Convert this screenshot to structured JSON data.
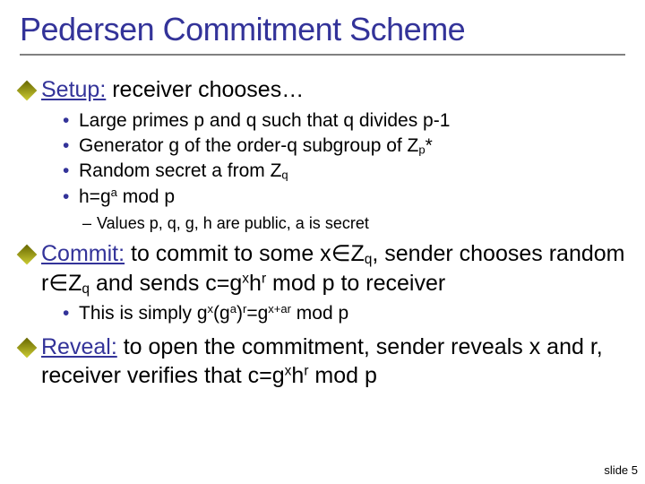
{
  "colors": {
    "title": "#333399",
    "underline": "#333399",
    "bullet": "#333399",
    "hr": "#808080",
    "diamond_a": "#666600",
    "diamond_b": "#cccc33",
    "background": "#ffffff",
    "text": "#000000"
  },
  "typography": {
    "title_fontsize": 36,
    "body_fontsize": 25,
    "sub_fontsize": 21,
    "sub2_fontsize": 18,
    "slidenum_fontsize": 13
  },
  "title": "Pedersen Commitment Scheme",
  "setup": {
    "label": "Setup:",
    "text": " receiver chooses…",
    "items": {
      "a_pre": "Large primes p and q such that q divides p-1",
      "b_pre": "Generator g of the order-q subgroup of Z",
      "b_sub": "p",
      "b_post": "*",
      "c_pre": "Random secret a from Z",
      "c_sub": "q",
      "d_pre": "h=g",
      "d_sup": "a",
      "d_post": " mod p"
    },
    "note": "Values p, q, g, h are public, a is secret"
  },
  "commit": {
    "label": "Commit:",
    "t1": " to commit to some x",
    "sym_in": "∈",
    "t2": "Z",
    "t2_sub": "q",
    "t3": ", sender chooses random r",
    "t4": "Z",
    "t4_sub": "q",
    "t5": " and sends c=g",
    "t5_supx": "x",
    "t6": "h",
    "t6_supr": "r",
    "t7": " mod p to receiver",
    "sub": {
      "a": "This is simply g",
      "a_supx": "x",
      "b": "(g",
      "b_supa": "a",
      "c": ")",
      "c_supr": "r",
      "d": "=g",
      "d_sup": "x+ar",
      "e": " mod p"
    }
  },
  "reveal": {
    "label": "Reveal:",
    "t1": " to open the commitment, sender reveals x and r, receiver verifies that c=g",
    "supx": "x",
    "t2": "h",
    "supr": "r",
    "t3": " mod p"
  },
  "slide_number": "slide 5"
}
